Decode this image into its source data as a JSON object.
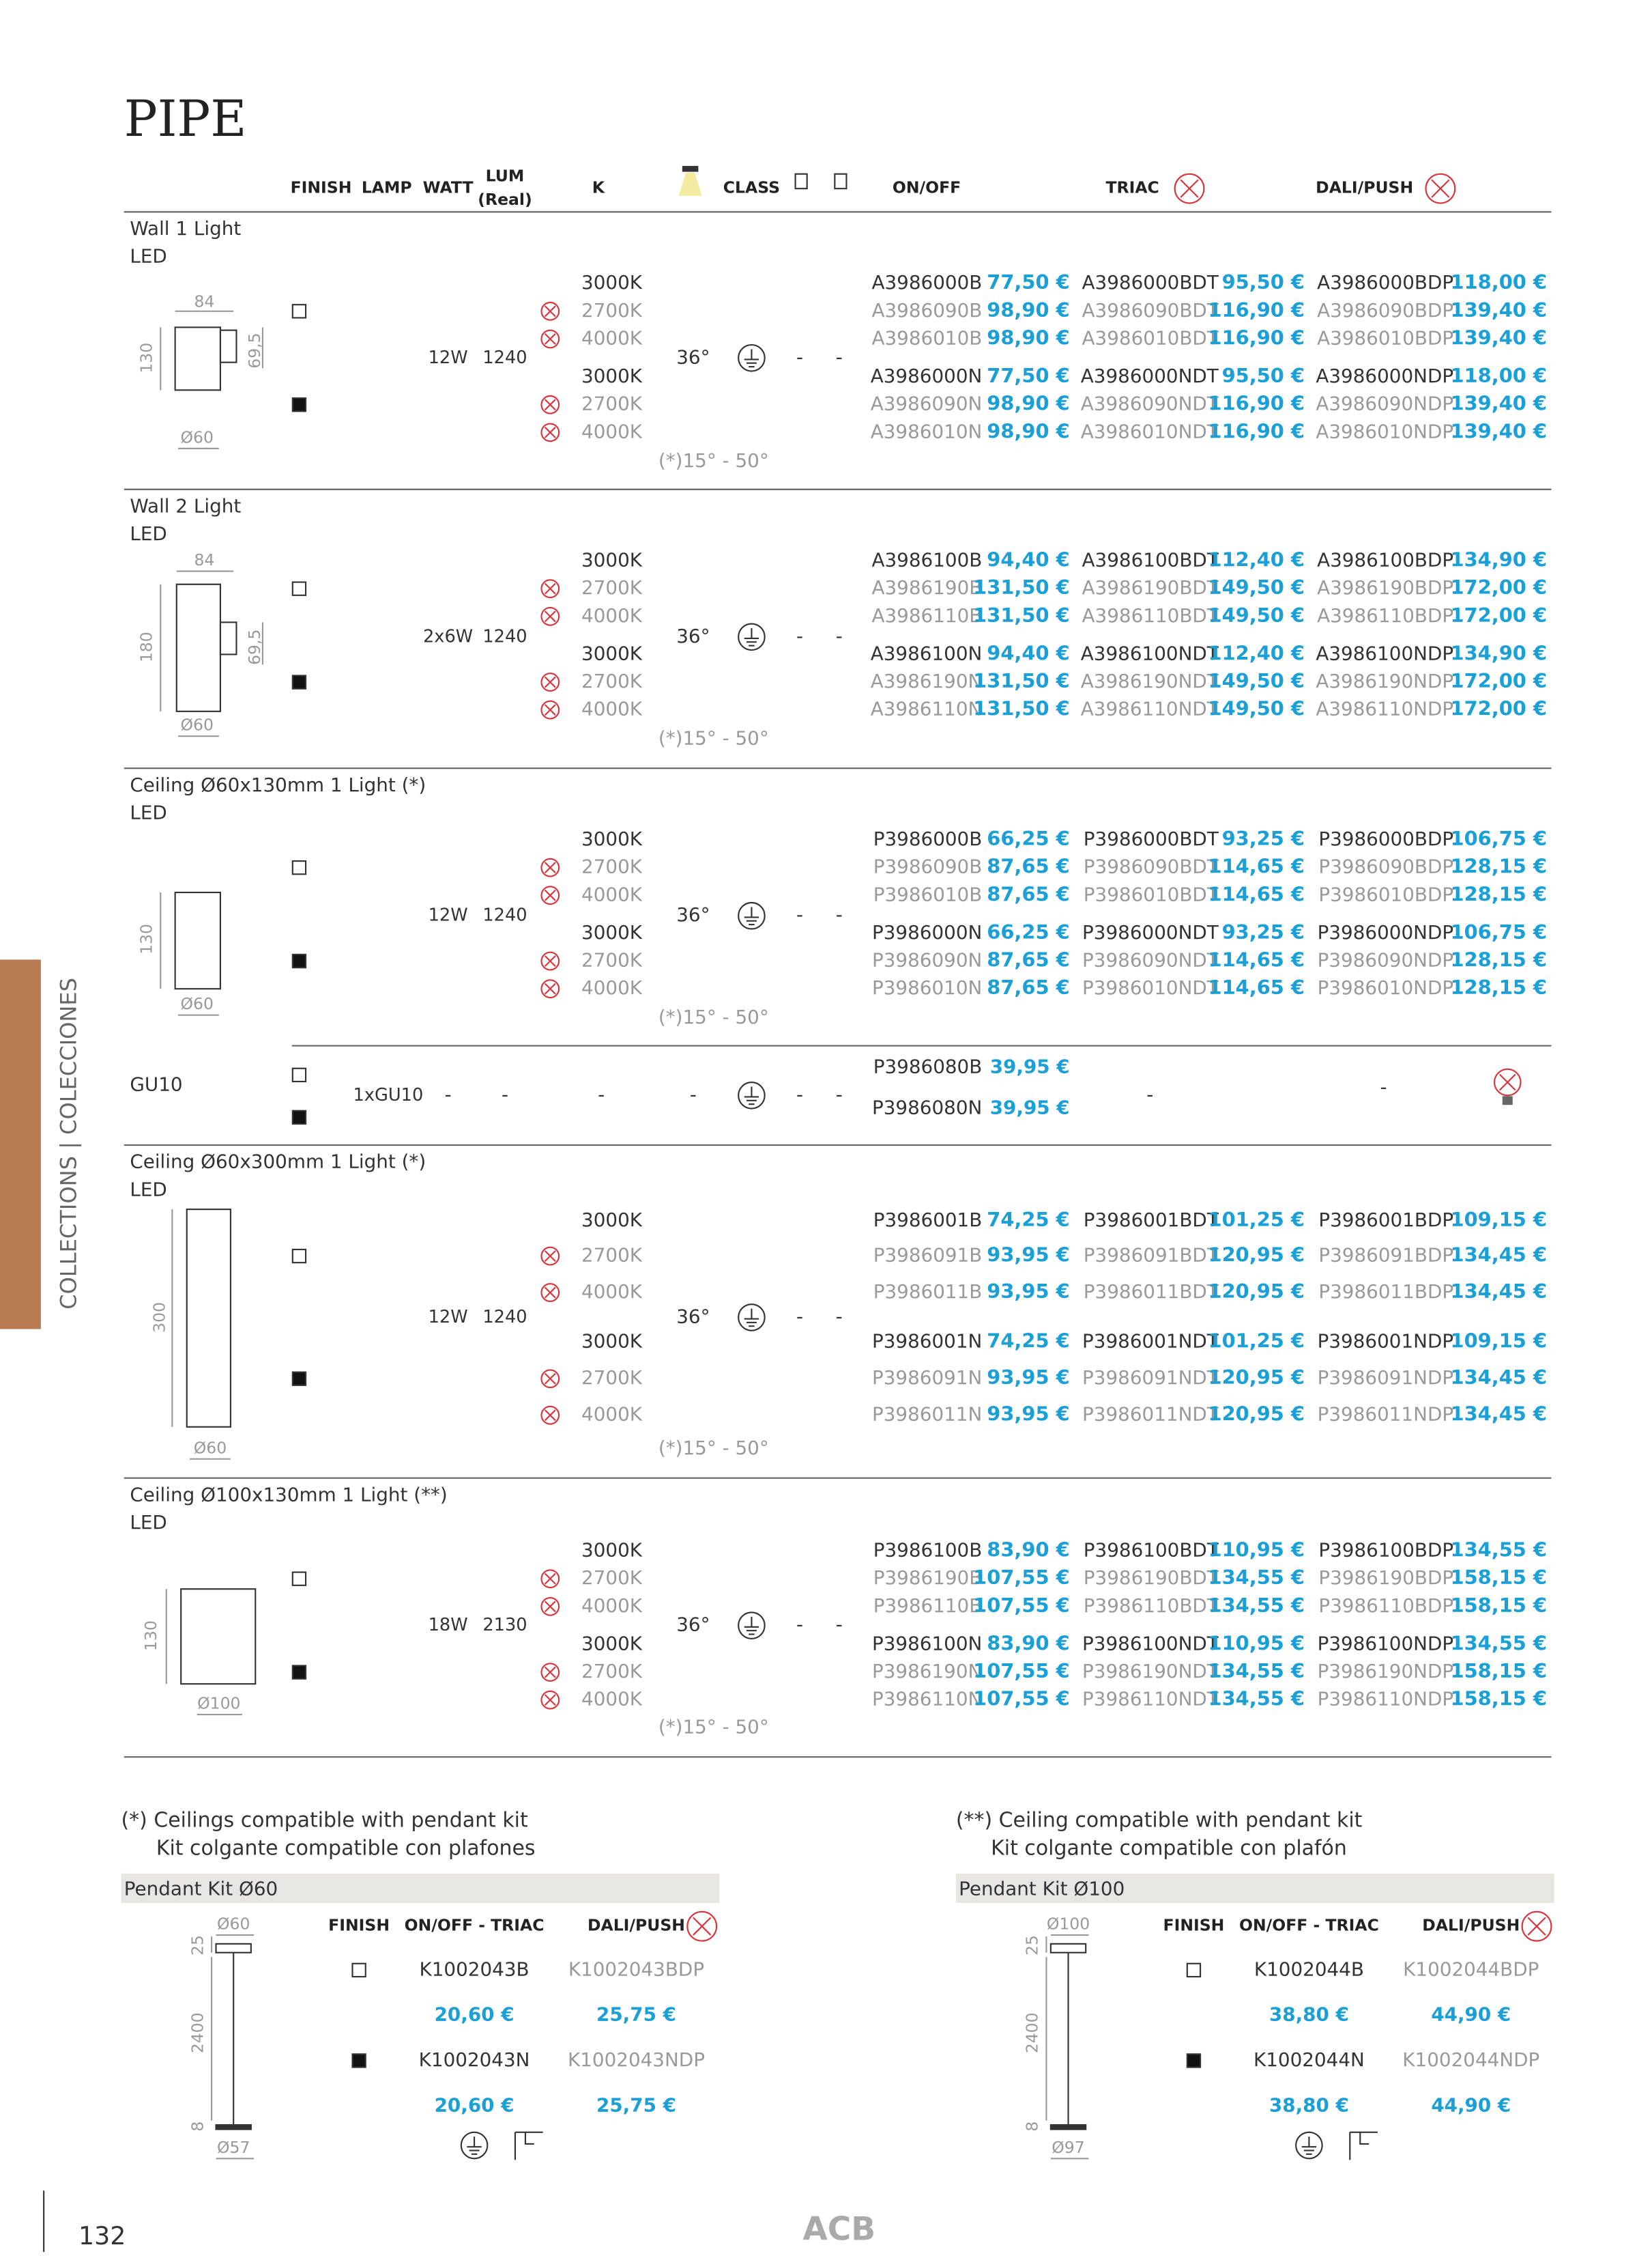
{
  "header": {
    "title": "PIPE",
    "columns": {
      "finish": "FINISH",
      "lamp": "LAMP",
      "watt": "WATT",
      "lum": "LUM",
      "lum_sub": "(Real)",
      "k": "K",
      "class": "CLASS",
      "onoff": "ON/OFF",
      "triac": "TRIAC",
      "dali": "DALI/PUSH"
    }
  },
  "sections": [
    {
      "name": "Wall 1 Light",
      "lamp": "LED",
      "dims": [
        "84",
        "69,5",
        "130",
        "Ø60"
      ],
      "watt": "12W",
      "lum": "1240",
      "beam": "36°",
      "beam_note": "(*)15° - 50°",
      "dashes": [
        "-",
        "-"
      ],
      "rows": [
        [
          "3000K",
          "A3986000B",
          "77,50 €",
          "A3986000BDT",
          "95,50 €",
          "A3986000BDP",
          "118,00 €"
        ],
        [
          "2700K",
          "A3986090B",
          "98,90 €",
          "A3986090BDT",
          "116,90 €",
          "A3986090BDP",
          "139,40 €"
        ],
        [
          "4000K",
          "A3986010B",
          "98,90 €",
          "A3986010BDT",
          "116,90 €",
          "A3986010BDP",
          "139,40 €"
        ],
        [
          "3000K",
          "A3986000N",
          "77,50 €",
          "A3986000NDT",
          "95,50 €",
          "A3986000NDP",
          "118,00 €"
        ],
        [
          "2700K",
          "A3986090N",
          "98,90 €",
          "A3986090NDT",
          "116,90 €",
          "A3986090NDP",
          "139,40 €"
        ],
        [
          "4000K",
          "A3986010N",
          "98,90 €",
          "A3986010NDT",
          "116,90 €",
          "A3986010NDP",
          "139,40 €"
        ]
      ]
    },
    {
      "name": "Wall 2 Light",
      "lamp": "LED",
      "dims": [
        "84",
        "69,5",
        "180",
        "Ø60"
      ],
      "watt": "2x6W",
      "lum": "1240",
      "beam": "36°",
      "beam_note": "(*)15° - 50°",
      "dashes": [
        "-",
        "-"
      ],
      "rows": [
        [
          "3000K",
          "A3986100B",
          "94,40 €",
          "A3986100BDT",
          "112,40 €",
          "A3986100BDP",
          "134,90 €"
        ],
        [
          "2700K",
          "A3986190B",
          "131,50 €",
          "A3986190BDT",
          "149,50 €",
          "A3986190BDP",
          "172,00 €"
        ],
        [
          "4000K",
          "A3986110B",
          "131,50 €",
          "A3986110BDT",
          "149,50 €",
          "A3986110BDP",
          "172,00 €"
        ],
        [
          "3000K",
          "A3986100N",
          "94,40 €",
          "A3986100NDT",
          "112,40 €",
          "A3986100NDP",
          "134,90 €"
        ],
        [
          "2700K",
          "A3986190N",
          "131,50 €",
          "A3986190NDT",
          "149,50 €",
          "A3986190NDP",
          "172,00 €"
        ],
        [
          "4000K",
          "A3986110N",
          "131,50 €",
          "A3986110NDT",
          "149,50 €",
          "A3986110NDP",
          "172,00 €"
        ]
      ]
    },
    {
      "name": "Ceiling Ø60x130mm 1 Light (*)",
      "lamp": "LED",
      "dims": [
        "130",
        "Ø60"
      ],
      "watt": "12W",
      "lum": "1240",
      "beam": "36°",
      "beam_note": "(*)15° - 50°",
      "dashes": [
        "-",
        "-"
      ],
      "rows": [
        [
          "3000K",
          "P3986000B",
          "66,25 €",
          "P3986000BDT",
          "93,25 €",
          "P3986000BDP",
          "106,75 €"
        ],
        [
          "2700K",
          "P3986090B",
          "87,65 €",
          "P3986090BDT",
          "114,65 €",
          "P3986090BDP",
          "128,15 €"
        ],
        [
          "4000K",
          "P3986010B",
          "87,65 €",
          "P3986010BDT",
          "114,65 €",
          "P3986010BDP",
          "128,15 €"
        ],
        [
          "3000K",
          "P3986000N",
          "66,25 €",
          "P3986000NDT",
          "93,25 €",
          "P3986000NDP",
          "106,75 €"
        ],
        [
          "2700K",
          "P3986090N",
          "87,65 €",
          "P3986090NDT",
          "114,65 €",
          "P3986090NDP",
          "128,15 €"
        ],
        [
          "4000K",
          "P3986010N",
          "87,65 €",
          "P3986010NDT",
          "114,65 €",
          "P3986010NDP",
          "128,15 €"
        ]
      ]
    },
    {
      "name": "Ceiling Ø60x300mm 1 Light (*)",
      "lamp": "LED",
      "dims": [
        "300",
        "Ø60"
      ],
      "watt": "12W",
      "lum": "1240",
      "beam": "36°",
      "beam_note": "(*)15° - 50°",
      "dashes": [
        "-",
        "-"
      ],
      "rows": [
        [
          "3000K",
          "P3986001B",
          "74,25 €",
          "P3986001BDT",
          "101,25 €",
          "P3986001BDP",
          "109,15 €"
        ],
        [
          "2700K",
          "P3986091B",
          "93,95 €",
          "P3986091BDT",
          "120,95 €",
          "P3986091BDP",
          "134,45 €"
        ],
        [
          "4000K",
          "P3986011B",
          "93,95 €",
          "P3986011BDT",
          "120,95 €",
          "P3986011BDP",
          "134,45 €"
        ],
        [
          "3000K",
          "P3986001N",
          "74,25 €",
          "P3986001NDT",
          "101,25 €",
          "P3986001NDP",
          "109,15 €"
        ],
        [
          "2700K",
          "P3986091N",
          "93,95 €",
          "P3986091NDT",
          "120,95 €",
          "P3986091NDP",
          "134,45 €"
        ],
        [
          "4000K",
          "P3986011N",
          "93,95 €",
          "P3986011NDT",
          "120,95 €",
          "P3986011NDP",
          "134,45 €"
        ]
      ]
    },
    {
      "name": "Ceiling Ø100x130mm 1 Light (**)",
      "lamp": "LED",
      "dims": [
        "130",
        "Ø100"
      ],
      "watt": "18W",
      "lum": "2130",
      "beam": "36°",
      "beam_note": "(*)15° - 50°",
      "dashes": [
        "-",
        "-"
      ],
      "rows": [
        [
          "3000K",
          "P3986100B",
          "83,90 €",
          "P3986100BDT",
          "110,95 €",
          "P3986100BDP",
          "134,55 €"
        ],
        [
          "2700K",
          "P3986190B",
          "107,55 €",
          "P3986190BDT",
          "134,55 €",
          "P3986190BDP",
          "158,15 €"
        ],
        [
          "4000K",
          "P3986110B",
          "107,55 €",
          "P3986110BDT",
          "134,55 €",
          "P3986110BDP",
          "158,15 €"
        ],
        [
          "3000K",
          "P3986100N",
          "83,90 €",
          "P3986100NDT",
          "110,95 €",
          "P3986100NDP",
          "134,55 €"
        ],
        [
          "2700K",
          "P3986190N",
          "107,55 €",
          "P3986190NDT",
          "134,55 €",
          "P3986190NDP",
          "158,15 €"
        ],
        [
          "4000K",
          "P3986110N",
          "107,55 €",
          "P3986110NDT",
          "134,55 €",
          "P3986110NDP",
          "158,15 €"
        ]
      ]
    }
  ],
  "gu10": {
    "name": "GU10",
    "lamp": "1xGU10",
    "watt": "-",
    "lum": "-",
    "k": "-",
    "beam": "-",
    "dashes": [
      "-",
      "-"
    ],
    "rows": [
      [
        "P3986080B",
        "39,95 €"
      ],
      [
        "P3986080N",
        "39,95 €"
      ]
    ],
    "triac": "-",
    "dali": "-"
  },
  "kits": [
    {
      "note": [
        "(*) Ceilings compatible with pendant kit",
        "Kit colgante compatible con plafones"
      ],
      "title": "Pendant Kit Ø60",
      "columns": [
        "FINISH",
        "ON/OFF - TRIAC",
        "DALI/PUSH"
      ],
      "dims": [
        "Ø60",
        "25",
        "2400",
        "8",
        "Ø57"
      ],
      "rows": [
        [
          "K1002043B",
          "K1002043BDP"
        ],
        [
          "20,60 €",
          "25,75 €"
        ],
        [
          "K1002043N",
          "K1002043NDP"
        ],
        [
          "20,60 €",
          "25,75 €"
        ]
      ]
    },
    {
      "note": [
        "(**) Ceiling compatible with pendant kit",
        "Kit colgante compatible con plafón"
      ],
      "title": "Pendant Kit Ø100",
      "columns": [
        "FINISH",
        "ON/OFF - TRIAC",
        "DALI/PUSH"
      ],
      "dims": [
        "Ø100",
        "25",
        "2400",
        "8",
        "Ø97"
      ],
      "rows": [
        [
          "K1002044B",
          "K1002044BDP"
        ],
        [
          "38,80 €",
          "44,90 €"
        ],
        [
          "K1002044N",
          "K1002044NDP"
        ],
        [
          "38,80 €",
          "44,90 €"
        ]
      ]
    }
  ],
  "side_label": "COLLECTIONS | COLECCIONES",
  "page_number": "132",
  "logo": "ACB"
}
